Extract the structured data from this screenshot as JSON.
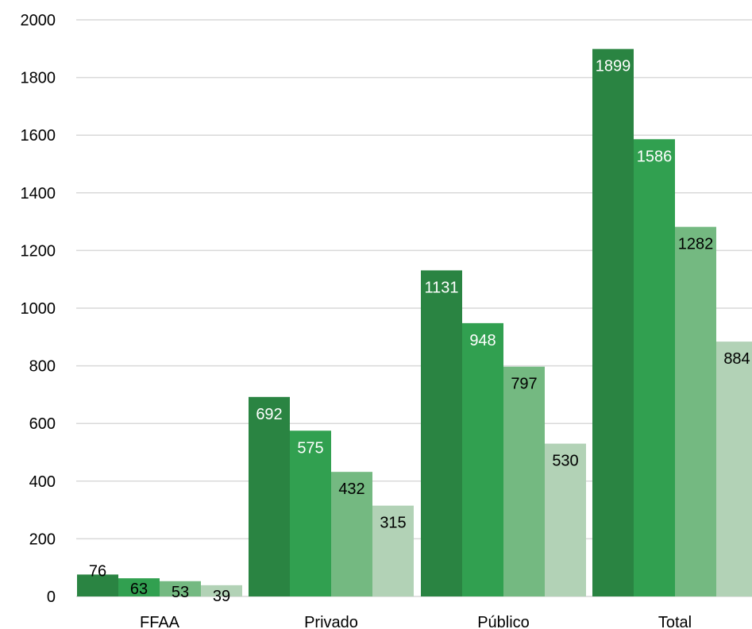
{
  "chart_data": {
    "type": "bar",
    "title": "",
    "xlabel": "",
    "ylabel": "",
    "ylim": [
      0,
      2000
    ],
    "yticks": [
      0,
      200,
      400,
      600,
      800,
      1000,
      1200,
      1400,
      1600,
      1800,
      2000
    ],
    "grid": true,
    "legend": "none",
    "categories": [
      "FFAA",
      "Privado",
      "Público",
      "Total"
    ],
    "series": [
      {
        "values": [
          76,
          692,
          1131,
          1899
        ],
        "color": "#2a8442",
        "label_color": "#ffffff"
      },
      {
        "values": [
          63,
          575,
          948,
          1586
        ],
        "color": "#31a050",
        "label_color": "#ffffff"
      },
      {
        "values": [
          53,
          432,
          797,
          1282
        ],
        "color": "#74b981",
        "label_color": "#000000"
      },
      {
        "values": [
          39,
          315,
          530,
          884
        ],
        "color": "#b2d2b6",
        "label_color": "#000000"
      }
    ]
  }
}
